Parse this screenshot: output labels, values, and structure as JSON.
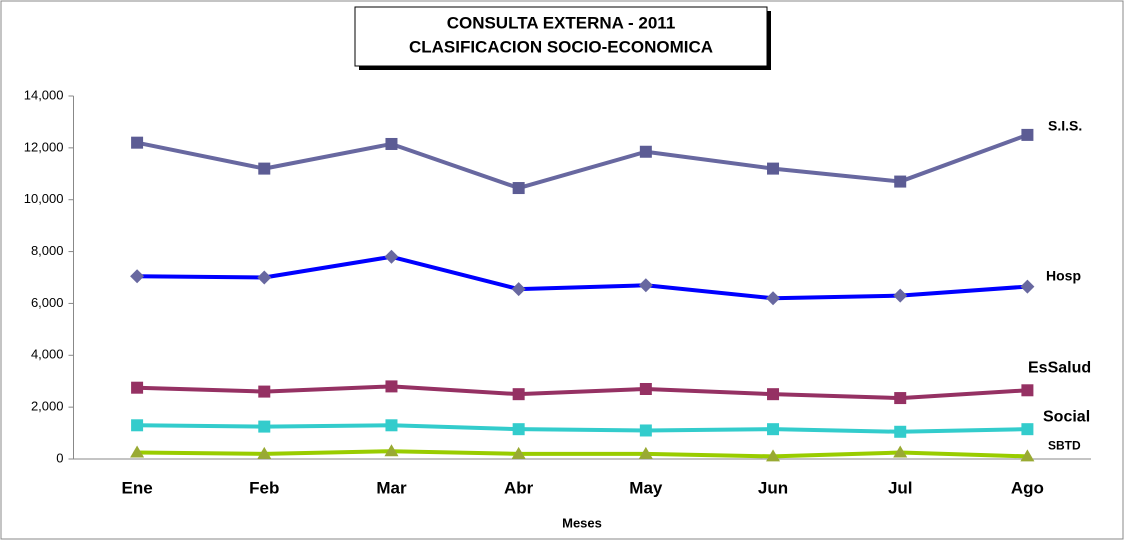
{
  "chart_data": {
    "type": "line",
    "title": [
      "CONSULTA EXTERNA - 2011",
      "CLASIFICACION SOCIO-ECONOMICA"
    ],
    "x_label": "Meses",
    "categories": [
      "Ene",
      "Feb",
      "Mar",
      "Abr",
      "May",
      "Jun",
      "Jul",
      "Ago"
    ],
    "series": [
      {
        "name": "S.I.S.",
        "color": "#6868a0",
        "marker": "square",
        "marker_color": "#5c5c94",
        "values": [
          12200,
          11200,
          12150,
          10450,
          11850,
          11200,
          10700,
          12500
        ]
      },
      {
        "name": "Hosp",
        "color": "#0000ff",
        "marker": "diamond",
        "marker_color": "#6868a0",
        "values": [
          7050,
          7000,
          7800,
          6550,
          6700,
          6200,
          6300,
          6650
        ]
      },
      {
        "name": "EsSalud",
        "color": "#953163",
        "marker": "square",
        "marker_color": "#953163",
        "values": [
          2750,
          2600,
          2800,
          2500,
          2700,
          2500,
          2350,
          2650
        ]
      },
      {
        "name": "Social",
        "color": "#33cccc",
        "marker": "square",
        "marker_color": "#33cccc",
        "values": [
          1300,
          1250,
          1300,
          1150,
          1100,
          1150,
          1050,
          1150
        ]
      },
      {
        "name": "SBTD",
        "color": "#99cc00",
        "marker": "triangle",
        "marker_color": "#99aa33",
        "values": [
          250,
          200,
          300,
          200,
          200,
          100,
          250,
          100
        ]
      }
    ],
    "ylim": [
      0,
      14000
    ],
    "yticks": [
      {
        "value": 0,
        "label": "0"
      },
      {
        "value": 2000,
        "label": "2,000"
      },
      {
        "value": 4000,
        "label": "4,000"
      },
      {
        "value": 6000,
        "label": "6,000"
      },
      {
        "value": 8000,
        "label": "8,000"
      },
      {
        "value": 10000,
        "label": "10,000"
      },
      {
        "value": 12000,
        "label": "12,000"
      },
      {
        "value": 14000,
        "label": "14,000"
      }
    ],
    "grid": false
  }
}
